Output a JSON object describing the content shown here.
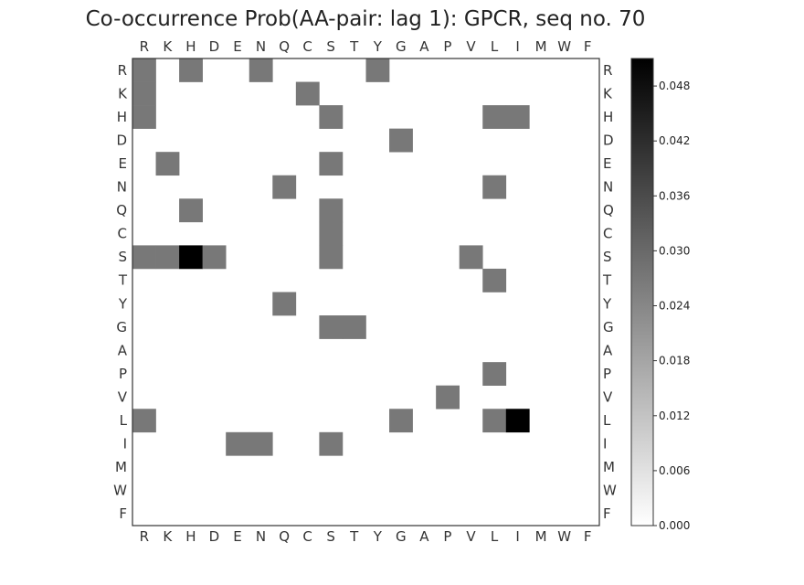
{
  "chart_data": {
    "type": "heatmap",
    "title": "Co-occurrence Prob(AA-pair: lag 1):  GPCR, seq no. 70",
    "x_labels": [
      "R",
      "K",
      "H",
      "D",
      "E",
      "N",
      "Q",
      "C",
      "S",
      "T",
      "Y",
      "G",
      "A",
      "P",
      "V",
      "L",
      "I",
      "M",
      "W",
      "F"
    ],
    "y_labels": [
      "R",
      "K",
      "H",
      "D",
      "E",
      "N",
      "Q",
      "C",
      "S",
      "T",
      "Y",
      "G",
      "A",
      "P",
      "V",
      "L",
      "I",
      "M",
      "W",
      "F"
    ],
    "cells": [
      {
        "row": "R",
        "col": "R",
        "value": 0.027
      },
      {
        "row": "R",
        "col": "H",
        "value": 0.027
      },
      {
        "row": "R",
        "col": "N",
        "value": 0.027
      },
      {
        "row": "R",
        "col": "Y",
        "value": 0.027
      },
      {
        "row": "K",
        "col": "R",
        "value": 0.027
      },
      {
        "row": "K",
        "col": "C",
        "value": 0.027
      },
      {
        "row": "H",
        "col": "R",
        "value": 0.027
      },
      {
        "row": "H",
        "col": "S",
        "value": 0.027
      },
      {
        "row": "H",
        "col": "L",
        "value": 0.027
      },
      {
        "row": "H",
        "col": "I",
        "value": 0.027
      },
      {
        "row": "D",
        "col": "G",
        "value": 0.027
      },
      {
        "row": "E",
        "col": "K",
        "value": 0.027
      },
      {
        "row": "E",
        "col": "S",
        "value": 0.027
      },
      {
        "row": "N",
        "col": "Q",
        "value": 0.027
      },
      {
        "row": "N",
        "col": "L",
        "value": 0.027
      },
      {
        "row": "Q",
        "col": "H",
        "value": 0.027
      },
      {
        "row": "Q",
        "col": "S",
        "value": 0.027
      },
      {
        "row": "C",
        "col": "S",
        "value": 0.027
      },
      {
        "row": "S",
        "col": "R",
        "value": 0.027
      },
      {
        "row": "S",
        "col": "K",
        "value": 0.027
      },
      {
        "row": "S",
        "col": "H",
        "value": 0.051
      },
      {
        "row": "S",
        "col": "D",
        "value": 0.027
      },
      {
        "row": "S",
        "col": "S",
        "value": 0.027
      },
      {
        "row": "S",
        "col": "V",
        "value": 0.027
      },
      {
        "row": "T",
        "col": "L",
        "value": 0.027
      },
      {
        "row": "Y",
        "col": "Q",
        "value": 0.027
      },
      {
        "row": "G",
        "col": "S",
        "value": 0.027
      },
      {
        "row": "G",
        "col": "T",
        "value": 0.027
      },
      {
        "row": "P",
        "col": "L",
        "value": 0.027
      },
      {
        "row": "V",
        "col": "P",
        "value": 0.027
      },
      {
        "row": "L",
        "col": "R",
        "value": 0.027
      },
      {
        "row": "L",
        "col": "G",
        "value": 0.027
      },
      {
        "row": "L",
        "col": "L",
        "value": 0.027
      },
      {
        "row": "L",
        "col": "I",
        "value": 0.051
      },
      {
        "row": "I",
        "col": "E",
        "value": 0.027
      },
      {
        "row": "I",
        "col": "N",
        "value": 0.027
      },
      {
        "row": "I",
        "col": "S",
        "value": 0.027
      }
    ],
    "colorbar": {
      "min": 0.0,
      "max": 0.051,
      "ticks": [
        "0.000",
        "0.006",
        "0.012",
        "0.018",
        "0.024",
        "0.030",
        "0.036",
        "0.042",
        "0.048"
      ],
      "colormap": "white-to-black"
    }
  }
}
